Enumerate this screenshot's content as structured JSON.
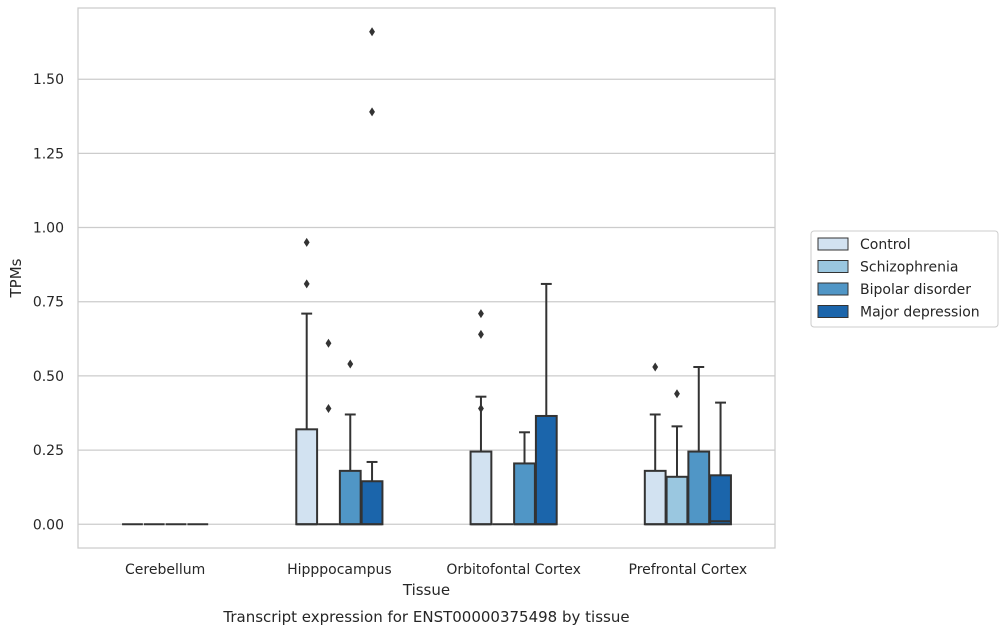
{
  "chart_data": {
    "type": "box",
    "title": "",
    "caption": "Transcript expression for ENST00000375498 by tissue",
    "xlabel": "Tissue",
    "ylabel": "TPMs",
    "ylim": [
      -0.08,
      1.74
    ],
    "yticks": [
      0.0,
      0.25,
      0.5,
      0.75,
      1.0,
      1.25,
      1.5
    ],
    "ytick_labels": [
      "0.00",
      "0.25",
      "0.50",
      "0.75",
      "1.00",
      "1.25",
      "1.50"
    ],
    "grid": "horizontal",
    "legend_position": "right",
    "categories": [
      "Cerebellum",
      "Hipppocampus",
      "Orbitofontal Cortex",
      "Prefrontal Cortex"
    ],
    "series": [
      {
        "name": "Control",
        "color": "#d2e2f1",
        "boxes": [
          {
            "q1": 0,
            "median": 0,
            "q3": 0,
            "whisker_low": 0,
            "whisker_high": 0,
            "outliers": []
          },
          {
            "q1": 0,
            "median": 0,
            "q3": 0.32,
            "whisker_low": 0,
            "whisker_high": 0.71,
            "outliers": [
              0.81,
              0.95
            ]
          },
          {
            "q1": 0,
            "median": 0,
            "q3": 0.245,
            "whisker_low": 0,
            "whisker_high": 0.43,
            "outliers": [
              0.39,
              0.64,
              0.71
            ]
          },
          {
            "q1": 0,
            "median": 0,
            "q3": 0.18,
            "whisker_low": 0,
            "whisker_high": 0.37,
            "outliers": [
              0.53
            ]
          }
        ]
      },
      {
        "name": "Schizophrenia",
        "color": "#9ac7e0",
        "boxes": [
          {
            "q1": 0,
            "median": 0,
            "q3": 0,
            "whisker_low": 0,
            "whisker_high": 0,
            "outliers": []
          },
          {
            "q1": 0,
            "median": 0,
            "q3": 0,
            "whisker_low": 0,
            "whisker_high": 0,
            "outliers": [
              0.39,
              0.61
            ]
          },
          {
            "q1": 0,
            "median": 0,
            "q3": 0,
            "whisker_low": 0,
            "whisker_high": 0,
            "outliers": []
          },
          {
            "q1": 0,
            "median": 0,
            "q3": 0.16,
            "whisker_low": 0,
            "whisker_high": 0.33,
            "outliers": [
              0.44
            ]
          }
        ]
      },
      {
        "name": "Bipolar disorder",
        "color": "#5096c6",
        "boxes": [
          {
            "q1": 0,
            "median": 0,
            "q3": 0,
            "whisker_low": 0,
            "whisker_high": 0,
            "outliers": []
          },
          {
            "q1": 0,
            "median": 0,
            "q3": 0.18,
            "whisker_low": 0,
            "whisker_high": 0.37,
            "outliers": [
              0.54
            ]
          },
          {
            "q1": 0,
            "median": 0,
            "q3": 0.205,
            "whisker_low": 0,
            "whisker_high": 0.31,
            "outliers": []
          },
          {
            "q1": 0,
            "median": 0,
            "q3": 0.245,
            "whisker_low": 0,
            "whisker_high": 0.53,
            "outliers": []
          }
        ]
      },
      {
        "name": "Major depression",
        "color": "#1b65ab",
        "boxes": [
          {
            "q1": 0,
            "median": 0,
            "q3": 0,
            "whisker_low": 0,
            "whisker_high": 0,
            "outliers": []
          },
          {
            "q1": 0,
            "median": 0,
            "q3": 0.145,
            "whisker_low": 0,
            "whisker_high": 0.21,
            "outliers": [
              1.39,
              1.66
            ]
          },
          {
            "q1": 0,
            "median": 0,
            "q3": 0.365,
            "whisker_low": 0,
            "whisker_high": 0.81,
            "outliers": []
          },
          {
            "q1": 0,
            "median": 0.01,
            "q3": 0.165,
            "whisker_low": 0,
            "whisker_high": 0.41,
            "outliers": []
          }
        ]
      }
    ]
  }
}
